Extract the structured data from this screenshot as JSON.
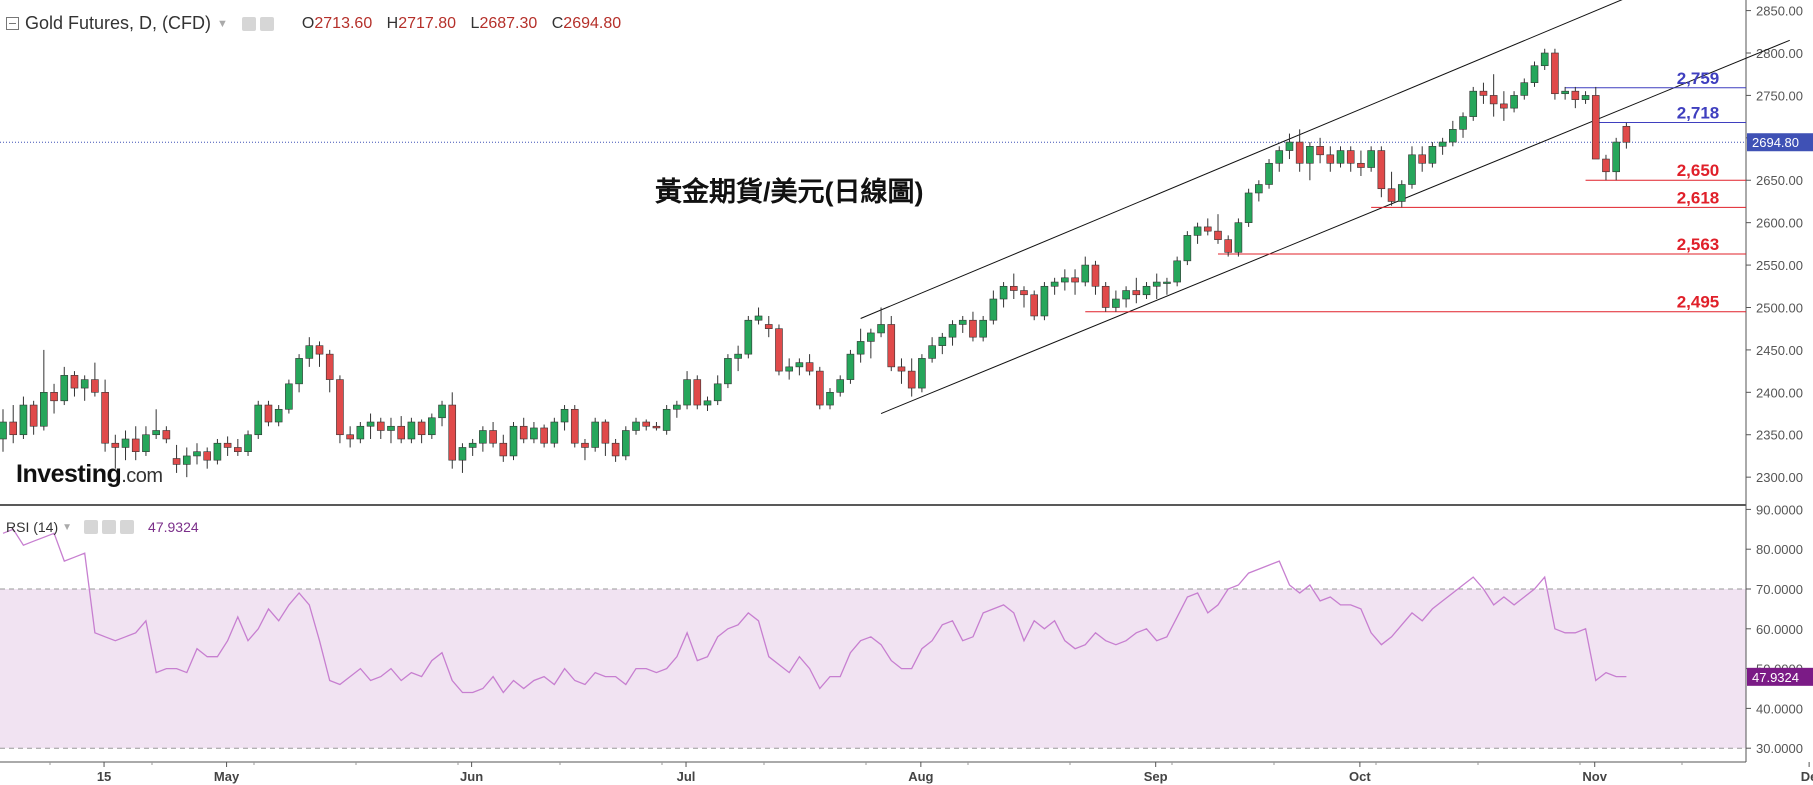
{
  "header": {
    "title": "Gold Futures, D, (CFD)",
    "open_label": "O",
    "open": "2713.60",
    "high_label": "H",
    "high": "2717.80",
    "low_label": "L",
    "low": "2687.30",
    "close_label": "C",
    "close": "2694.80"
  },
  "rsi_header": {
    "label": "RSI (14)",
    "value": "47.9324"
  },
  "watermark": {
    "brand": "Investing",
    "suffix": ".com"
  },
  "overlay_title": "黃金期貨/美元(日線圖)",
  "colors": {
    "up": "#26a65b",
    "down": "#e04a4a",
    "wick": "#333333",
    "blue_level": "#3f3fbf",
    "red_level": "#e0202a",
    "rsi_line": "#c77fd0",
    "rsi_band": "#f1e3f2",
    "price_tag": "#3f51b5",
    "rsi_tag": "#7b1b86"
  },
  "chart_data": {
    "type": "candlestick",
    "title": "黃金期貨/美元(日線圖)",
    "price_axis": {
      "ticks": [
        2300,
        2350,
        2400,
        2450,
        2500,
        2550,
        2600,
        2650,
        2700,
        2750,
        2800,
        2850
      ],
      "tick_labels": [
        "2300.00",
        "2350.00",
        "2400.00",
        "2450.00",
        "2500.00",
        "2550.00",
        "2600.00",
        "2650.00",
        "2700.00",
        "2750.00",
        "2800.00",
        "2850.00"
      ]
    },
    "time_axis": {
      "labels": [
        {
          "label": "15",
          "bar": 5
        },
        {
          "label": "May",
          "bar": 17
        },
        {
          "label": "Jun",
          "bar": 41
        },
        {
          "label": "Jul",
          "bar": 62
        },
        {
          "label": "Aug",
          "bar": 85
        },
        {
          "label": "Sep",
          "bar": 108
        },
        {
          "label": "Oct",
          "bar": 128
        },
        {
          "label": "Nov",
          "bar": 151
        },
        {
          "label": "De",
          "bar": 172
        }
      ]
    },
    "current_price": {
      "value": 2694.8,
      "label": "2694.80"
    },
    "ohlc": [
      [
        2345,
        2380,
        2330,
        2365
      ],
      [
        2365,
        2385,
        2340,
        2350
      ],
      [
        2350,
        2395,
        2345,
        2385
      ],
      [
        2385,
        2390,
        2350,
        2360
      ],
      [
        2360,
        2450,
        2355,
        2400
      ],
      [
        2400,
        2410,
        2375,
        2390
      ],
      [
        2390,
        2430,
        2385,
        2420
      ],
      [
        2420,
        2425,
        2395,
        2405
      ],
      [
        2405,
        2420,
        2390,
        2415
      ],
      [
        2415,
        2435,
        2395,
        2400
      ],
      [
        2400,
        2415,
        2330,
        2340
      ],
      [
        2340,
        2350,
        2310,
        2335
      ],
      [
        2335,
        2355,
        2320,
        2345
      ],
      [
        2345,
        2360,
        2320,
        2330
      ],
      [
        2330,
        2360,
        2325,
        2350
      ],
      [
        2350,
        2380,
        2345,
        2355
      ],
      [
        2355,
        2360,
        2340,
        2345
      ],
      [
        2322,
        2338,
        2305,
        2315
      ],
      [
        2315,
        2335,
        2300,
        2325
      ],
      [
        2325,
        2340,
        2315,
        2330
      ],
      [
        2330,
        2335,
        2310,
        2320
      ],
      [
        2320,
        2345,
        2315,
        2340
      ],
      [
        2340,
        2348,
        2325,
        2335
      ],
      [
        2335,
        2345,
        2325,
        2330
      ],
      [
        2330,
        2355,
        2325,
        2350
      ],
      [
        2350,
        2390,
        2345,
        2385
      ],
      [
        2385,
        2390,
        2360,
        2365
      ],
      [
        2365,
        2385,
        2360,
        2380
      ],
      [
        2380,
        2415,
        2375,
        2410
      ],
      [
        2410,
        2445,
        2400,
        2440
      ],
      [
        2440,
        2465,
        2430,
        2455
      ],
      [
        2455,
        2460,
        2430,
        2445
      ],
      [
        2445,
        2450,
        2400,
        2415
      ],
      [
        2415,
        2420,
        2340,
        2350
      ],
      [
        2350,
        2360,
        2335,
        2345
      ],
      [
        2345,
        2365,
        2340,
        2360
      ],
      [
        2360,
        2375,
        2345,
        2365
      ],
      [
        2365,
        2370,
        2345,
        2355
      ],
      [
        2355,
        2370,
        2340,
        2360
      ],
      [
        2360,
        2372,
        2340,
        2345
      ],
      [
        2345,
        2370,
        2340,
        2365
      ],
      [
        2365,
        2368,
        2340,
        2350
      ],
      [
        2350,
        2375,
        2345,
        2370
      ],
      [
        2370,
        2390,
        2360,
        2385
      ],
      [
        2385,
        2400,
        2310,
        2320
      ],
      [
        2320,
        2340,
        2305,
        2335
      ],
      [
        2335,
        2345,
        2325,
        2340
      ],
      [
        2340,
        2360,
        2330,
        2355
      ],
      [
        2355,
        2365,
        2335,
        2340
      ],
      [
        2340,
        2350,
        2318,
        2325
      ],
      [
        2325,
        2365,
        2320,
        2360
      ],
      [
        2360,
        2370,
        2340,
        2345
      ],
      [
        2345,
        2365,
        2340,
        2358
      ],
      [
        2358,
        2362,
        2335,
        2340
      ],
      [
        2340,
        2370,
        2335,
        2365
      ],
      [
        2365,
        2385,
        2355,
        2380
      ],
      [
        2380,
        2385,
        2335,
        2340
      ],
      [
        2340,
        2345,
        2320,
        2335
      ],
      [
        2335,
        2370,
        2330,
        2365
      ],
      [
        2365,
        2368,
        2325,
        2340
      ],
      [
        2340,
        2345,
        2318,
        2325
      ],
      [
        2325,
        2360,
        2320,
        2355
      ],
      [
        2355,
        2370,
        2350,
        2365
      ],
      [
        2365,
        2368,
        2355,
        2360
      ],
      [
        2360,
        2365,
        2355,
        2358
      ],
      [
        2355,
        2385,
        2350,
        2380
      ],
      [
        2380,
        2390,
        2370,
        2385
      ],
      [
        2385,
        2425,
        2380,
        2415
      ],
      [
        2415,
        2420,
        2380,
        2385
      ],
      [
        2385,
        2395,
        2378,
        2390
      ],
      [
        2390,
        2420,
        2385,
        2410
      ],
      [
        2410,
        2445,
        2405,
        2440
      ],
      [
        2440,
        2455,
        2425,
        2445
      ],
      [
        2445,
        2490,
        2440,
        2485
      ],
      [
        2485,
        2500,
        2480,
        2490
      ],
      [
        2480,
        2490,
        2465,
        2475
      ],
      [
        2475,
        2480,
        2420,
        2425
      ],
      [
        2425,
        2440,
        2415,
        2430
      ],
      [
        2430,
        2440,
        2420,
        2435
      ],
      [
        2435,
        2445,
        2420,
        2425
      ],
      [
        2425,
        2430,
        2380,
        2385
      ],
      [
        2385,
        2405,
        2380,
        2400
      ],
      [
        2400,
        2420,
        2395,
        2415
      ],
      [
        2415,
        2450,
        2410,
        2445
      ],
      [
        2445,
        2475,
        2435,
        2460
      ],
      [
        2460,
        2475,
        2440,
        2470
      ],
      [
        2470,
        2500,
        2465,
        2480
      ],
      [
        2480,
        2490,
        2425,
        2430
      ],
      [
        2430,
        2440,
        2410,
        2425
      ],
      [
        2425,
        2440,
        2395,
        2405
      ],
      [
        2405,
        2445,
        2400,
        2440
      ],
      [
        2440,
        2465,
        2435,
        2455
      ],
      [
        2455,
        2470,
        2445,
        2465
      ],
      [
        2465,
        2485,
        2455,
        2480
      ],
      [
        2480,
        2490,
        2470,
        2485
      ],
      [
        2485,
        2495,
        2460,
        2465
      ],
      [
        2465,
        2490,
        2460,
        2485
      ],
      [
        2485,
        2520,
        2480,
        2510
      ],
      [
        2510,
        2530,
        2500,
        2525
      ],
      [
        2525,
        2540,
        2510,
        2520
      ],
      [
        2520,
        2525,
        2500,
        2515
      ],
      [
        2515,
        2520,
        2485,
        2490
      ],
      [
        2490,
        2530,
        2485,
        2525
      ],
      [
        2525,
        2535,
        2515,
        2530
      ],
      [
        2530,
        2545,
        2520,
        2535
      ],
      [
        2535,
        2545,
        2515,
        2530
      ],
      [
        2530,
        2560,
        2525,
        2550
      ],
      [
        2550,
        2555,
        2515,
        2525
      ],
      [
        2525,
        2530,
        2495,
        2500
      ],
      [
        2500,
        2520,
        2495,
        2510
      ],
      [
        2510,
        2525,
        2500,
        2520
      ],
      [
        2520,
        2535,
        2505,
        2515
      ],
      [
        2515,
        2530,
        2510,
        2525
      ],
      [
        2525,
        2540,
        2510,
        2530
      ],
      [
        2530,
        2535,
        2515,
        2530
      ],
      [
        2530,
        2560,
        2525,
        2555
      ],
      [
        2555,
        2590,
        2550,
        2585
      ],
      [
        2585,
        2600,
        2575,
        2595
      ],
      [
        2595,
        2605,
        2585,
        2590
      ],
      [
        2590,
        2610,
        2575,
        2580
      ],
      [
        2580,
        2585,
        2560,
        2565
      ],
      [
        2565,
        2605,
        2560,
        2600
      ],
      [
        2600,
        2640,
        2595,
        2635
      ],
      [
        2635,
        2650,
        2625,
        2645
      ],
      [
        2645,
        2675,
        2640,
        2670
      ],
      [
        2670,
        2690,
        2660,
        2685
      ],
      [
        2685,
        2705,
        2675,
        2695
      ],
      [
        2695,
        2710,
        2660,
        2670
      ],
      [
        2670,
        2695,
        2650,
        2690
      ],
      [
        2690,
        2700,
        2670,
        2680
      ],
      [
        2680,
        2690,
        2660,
        2670
      ],
      [
        2670,
        2690,
        2665,
        2685
      ],
      [
        2685,
        2690,
        2660,
        2670
      ],
      [
        2670,
        2685,
        2655,
        2665
      ],
      [
        2665,
        2690,
        2660,
        2685
      ],
      [
        2685,
        2690,
        2630,
        2640
      ],
      [
        2640,
        2660,
        2620,
        2625
      ],
      [
        2625,
        2650,
        2618,
        2645
      ],
      [
        2645,
        2690,
        2640,
        2680
      ],
      [
        2680,
        2690,
        2660,
        2670
      ],
      [
        2670,
        2695,
        2665,
        2690
      ],
      [
        2690,
        2700,
        2680,
        2695
      ],
      [
        2695,
        2720,
        2690,
        2710
      ],
      [
        2710,
        2730,
        2700,
        2725
      ],
      [
        2725,
        2760,
        2720,
        2755
      ],
      [
        2755,
        2765,
        2740,
        2750
      ],
      [
        2750,
        2775,
        2725,
        2740
      ],
      [
        2740,
        2755,
        2720,
        2735
      ],
      [
        2735,
        2755,
        2730,
        2750
      ],
      [
        2750,
        2770,
        2745,
        2765
      ],
      [
        2765,
        2790,
        2760,
        2785
      ],
      [
        2785,
        2805,
        2780,
        2800
      ],
      [
        2800,
        2805,
        2745,
        2752
      ],
      [
        2752,
        2760,
        2745,
        2755
      ],
      [
        2755,
        2760,
        2735,
        2745
      ],
      [
        2745,
        2755,
        2740,
        2750
      ],
      [
        2750,
        2760,
        2680,
        2675
      ],
      [
        2675,
        2680,
        2650,
        2660
      ],
      [
        2660,
        2700,
        2650,
        2695
      ],
      [
        2713.6,
        2717.8,
        2687.3,
        2694.8
      ]
    ],
    "levels": [
      {
        "value": 2759,
        "label": "2,759",
        "color": "blue",
        "from_bar": 153
      },
      {
        "value": 2718,
        "label": "2,718",
        "color": "blue",
        "from_bar": 156
      },
      {
        "value": 2650,
        "label": "2,650",
        "color": "red",
        "from_bar": 155
      },
      {
        "value": 2618,
        "label": "2,618",
        "color": "red",
        "from_bar": 134
      },
      {
        "value": 2563,
        "label": "2,563",
        "color": "red",
        "from_bar": 119
      },
      {
        "value": 2495,
        "label": "2,495",
        "color": "red",
        "from_bar": 106
      }
    ],
    "channel": {
      "upper": [
        [
          84,
          2487
        ],
        [
          159,
          2865
        ]
      ],
      "lower": [
        [
          86,
          2375
        ],
        [
          175,
          2815
        ]
      ]
    },
    "rsi": {
      "name": "RSI (14)",
      "value": 47.9324,
      "value_label": "47.9324",
      "axis_ticks": [
        30,
        40,
        50,
        60,
        70,
        80,
        90
      ],
      "axis_labels": [
        "30.0000",
        "40.0000",
        "50.0000",
        "60.0000",
        "70.0000",
        "80.0000",
        "90.0000"
      ],
      "overbought": 70,
      "oversold": 30,
      "values": [
        84,
        85,
        81,
        82,
        83,
        84,
        77,
        78,
        79,
        59,
        58,
        57,
        58,
        59,
        62,
        49,
        50,
        50,
        49,
        55,
        53,
        53,
        57,
        63,
        57,
        60,
        65,
        62,
        66,
        69,
        66,
        57,
        47,
        46,
        48,
        50,
        47,
        48,
        50,
        47,
        49,
        48,
        52,
        54,
        47,
        44,
        44,
        45,
        48,
        44,
        47,
        45,
        47,
        48,
        46,
        50,
        47,
        46,
        49,
        48,
        48,
        46,
        50,
        50,
        49,
        50,
        53,
        59,
        52,
        53,
        58,
        60,
        61,
        64,
        62,
        53,
        51,
        49,
        53,
        50,
        45,
        48,
        48,
        54,
        57,
        58,
        56,
        52,
        50,
        50,
        55,
        57,
        61,
        62,
        57,
        58,
        64,
        65,
        66,
        64,
        57,
        62,
        60,
        62,
        57,
        55,
        56,
        59,
        57,
        56,
        57,
        59,
        60,
        57,
        58,
        63,
        68,
        69,
        64,
        66,
        70,
        71,
        74,
        75,
        76,
        77,
        71,
        69,
        71,
        67,
        68,
        66,
        66,
        65,
        59,
        56,
        58,
        61,
        64,
        62,
        65,
        67,
        69,
        71,
        73,
        70,
        66,
        68,
        66,
        68,
        70,
        73,
        60,
        59,
        59,
        60,
        47,
        49,
        48,
        48
      ]
    }
  }
}
